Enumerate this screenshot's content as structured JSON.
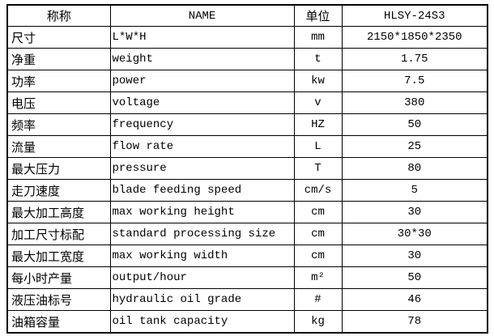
{
  "page": {
    "background": "#ffffff",
    "text_color": "#000000",
    "border_color": "#000000"
  },
  "table": {
    "header": {
      "cn": "称称",
      "name": "NAME",
      "unit": "单位",
      "model": "HLSY-24S3"
    },
    "rows": [
      {
        "cn": "尺寸",
        "en": "L*W*H",
        "unit": "mm",
        "value": "2150*1850*2350"
      },
      {
        "cn": "净重",
        "en": "weight",
        "unit": "t",
        "value": "1.75"
      },
      {
        "cn": "功率",
        "en": "power",
        "unit": "kw",
        "value": "7.5"
      },
      {
        "cn": "电压",
        "en": "voltage",
        "unit": "v",
        "value": "380"
      },
      {
        "cn": "频率",
        "en": "frequency",
        "unit": "HZ",
        "value": "50"
      },
      {
        "cn": "流量",
        "en": "flow rate",
        "unit": "L",
        "value": "25"
      },
      {
        "cn": "最大压力",
        "en": "pressure",
        "unit": "T",
        "value": "80"
      },
      {
        "cn": "走刀速度",
        "en": "blade feeding speed",
        "unit": "cm/s",
        "value": "5"
      },
      {
        "cn": "最大加工高度",
        "en": "max working height",
        "unit": "cm",
        "value": "30"
      },
      {
        "cn": "加工尺寸标配",
        "en": "standard processing size",
        "unit": "cm",
        "value": "30*30"
      },
      {
        "cn": "最大加工宽度",
        "en": "max working width",
        "unit": "cm",
        "value": "30"
      },
      {
        "cn": "每小时产量",
        "en": "output/hour",
        "unit": "m²",
        "value": "50"
      },
      {
        "cn": "液压油标号",
        "en": "hydraulic oil grade",
        "unit": "#",
        "value": "46"
      },
      {
        "cn": "油箱容量",
        "en": "oil tank capacity",
        "unit": "kg",
        "value": "78"
      }
    ]
  }
}
